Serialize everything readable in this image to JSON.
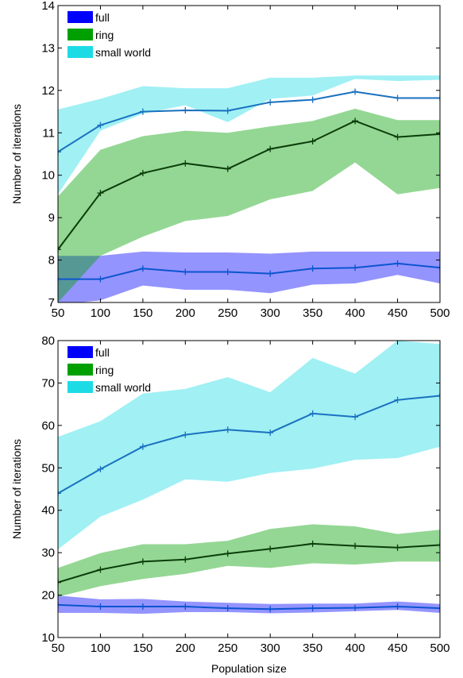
{
  "chart_data": [
    {
      "type": "line",
      "title": "",
      "xlabel": "",
      "ylabel": "Number of iterations",
      "xlim": [
        50,
        500
      ],
      "ylim": [
        7,
        14
      ],
      "xticks": [
        50,
        100,
        150,
        200,
        250,
        300,
        350,
        400,
        450,
        500
      ],
      "yticks": [
        7,
        8,
        9,
        10,
        11,
        12,
        13,
        14
      ],
      "grid": false,
      "legend_position": "top-left",
      "x": [
        50,
        100,
        150,
        200,
        250,
        300,
        350,
        400,
        450,
        500
      ],
      "series": [
        {
          "name": "full",
          "band_color": "#0000ff",
          "line_color": "#0b55cf",
          "values": [
            7.55,
            7.55,
            7.8,
            7.72,
            7.72,
            7.68,
            7.8,
            7.82,
            7.92,
            7.82
          ],
          "lower": [
            6.95,
            7.05,
            7.4,
            7.3,
            7.3,
            7.22,
            7.42,
            7.45,
            7.65,
            7.45
          ],
          "upper": [
            8.1,
            8.1,
            8.2,
            8.18,
            8.18,
            8.15,
            8.2,
            8.2,
            8.2,
            8.2
          ]
        },
        {
          "name": "ring",
          "band_color": "#00a000",
          "line_color": "#0a3d0a",
          "values": [
            8.25,
            9.58,
            10.05,
            10.28,
            10.15,
            10.62,
            10.8,
            11.28,
            10.9,
            10.97
          ],
          "lower": [
            7.0,
            8.1,
            8.55,
            8.92,
            9.04,
            9.43,
            9.63,
            10.3,
            9.55,
            9.7
          ],
          "upper": [
            9.5,
            10.6,
            10.92,
            11.05,
            11.0,
            11.15,
            11.28,
            11.57,
            11.3,
            11.3
          ]
        },
        {
          "name": "small world",
          "band_color": "#1ddbe4",
          "line_color": "#1a71bf",
          "values": [
            10.55,
            11.18,
            11.5,
            11.53,
            11.52,
            11.72,
            11.78,
            11.97,
            11.82,
            11.82
          ],
          "lower": [
            9.55,
            11.05,
            11.45,
            11.65,
            11.25,
            11.8,
            11.88,
            12.27,
            12.22,
            12.25
          ],
          "upper": [
            11.55,
            11.8,
            12.1,
            12.05,
            12.05,
            12.3,
            12.3,
            12.35,
            12.35,
            12.35
          ]
        }
      ]
    },
    {
      "type": "line",
      "title": "",
      "xlabel": "Population size",
      "ylabel": "Number of iterations",
      "xlim": [
        50,
        500
      ],
      "ylim": [
        10,
        80
      ],
      "xticks": [
        50,
        100,
        150,
        200,
        250,
        300,
        350,
        400,
        450,
        500
      ],
      "yticks": [
        10,
        20,
        30,
        40,
        50,
        60,
        70,
        80
      ],
      "grid": false,
      "legend_position": "top-left",
      "x": [
        50,
        100,
        150,
        200,
        250,
        300,
        350,
        400,
        450,
        500
      ],
      "series": [
        {
          "name": "full",
          "band_color": "#0000ff",
          "line_color": "#0b55cf",
          "values": [
            17.7,
            17.3,
            17.3,
            17.3,
            16.9,
            16.7,
            16.9,
            17.0,
            17.3,
            16.9
          ],
          "lower": [
            15.8,
            15.8,
            15.6,
            16.0,
            16.0,
            15.7,
            15.9,
            16.2,
            16.5,
            15.8
          ],
          "upper": [
            19.9,
            19.0,
            19.1,
            18.5,
            18.2,
            17.9,
            18.0,
            18.0,
            18.5,
            17.9
          ]
        },
        {
          "name": "ring",
          "band_color": "#00a000",
          "line_color": "#0a3d0a",
          "values": [
            23.0,
            26.0,
            27.9,
            28.4,
            29.8,
            30.9,
            32.1,
            31.6,
            31.2,
            31.8
          ],
          "lower": [
            19.6,
            22.1,
            23.8,
            25.0,
            26.9,
            26.4,
            27.5,
            27.2,
            27.9,
            27.9
          ],
          "upper": [
            26.4,
            29.9,
            32.0,
            32.0,
            32.8,
            35.6,
            36.7,
            36.2,
            34.4,
            35.4
          ]
        },
        {
          "name": "small world",
          "band_color": "#1ddbe4",
          "line_color": "#1a71bf",
          "values": [
            44.0,
            49.7,
            55.0,
            57.8,
            59.0,
            58.3,
            62.8,
            62.0,
            66.0,
            67.0
          ],
          "lower": [
            30.8,
            38.5,
            42.5,
            47.3,
            46.7,
            48.8,
            49.8,
            51.9,
            52.3,
            55.0
          ],
          "upper": [
            57.3,
            61.0,
            67.5,
            68.6,
            71.4,
            67.8,
            75.9,
            72.2,
            80.0,
            79.2
          ]
        }
      ]
    }
  ]
}
